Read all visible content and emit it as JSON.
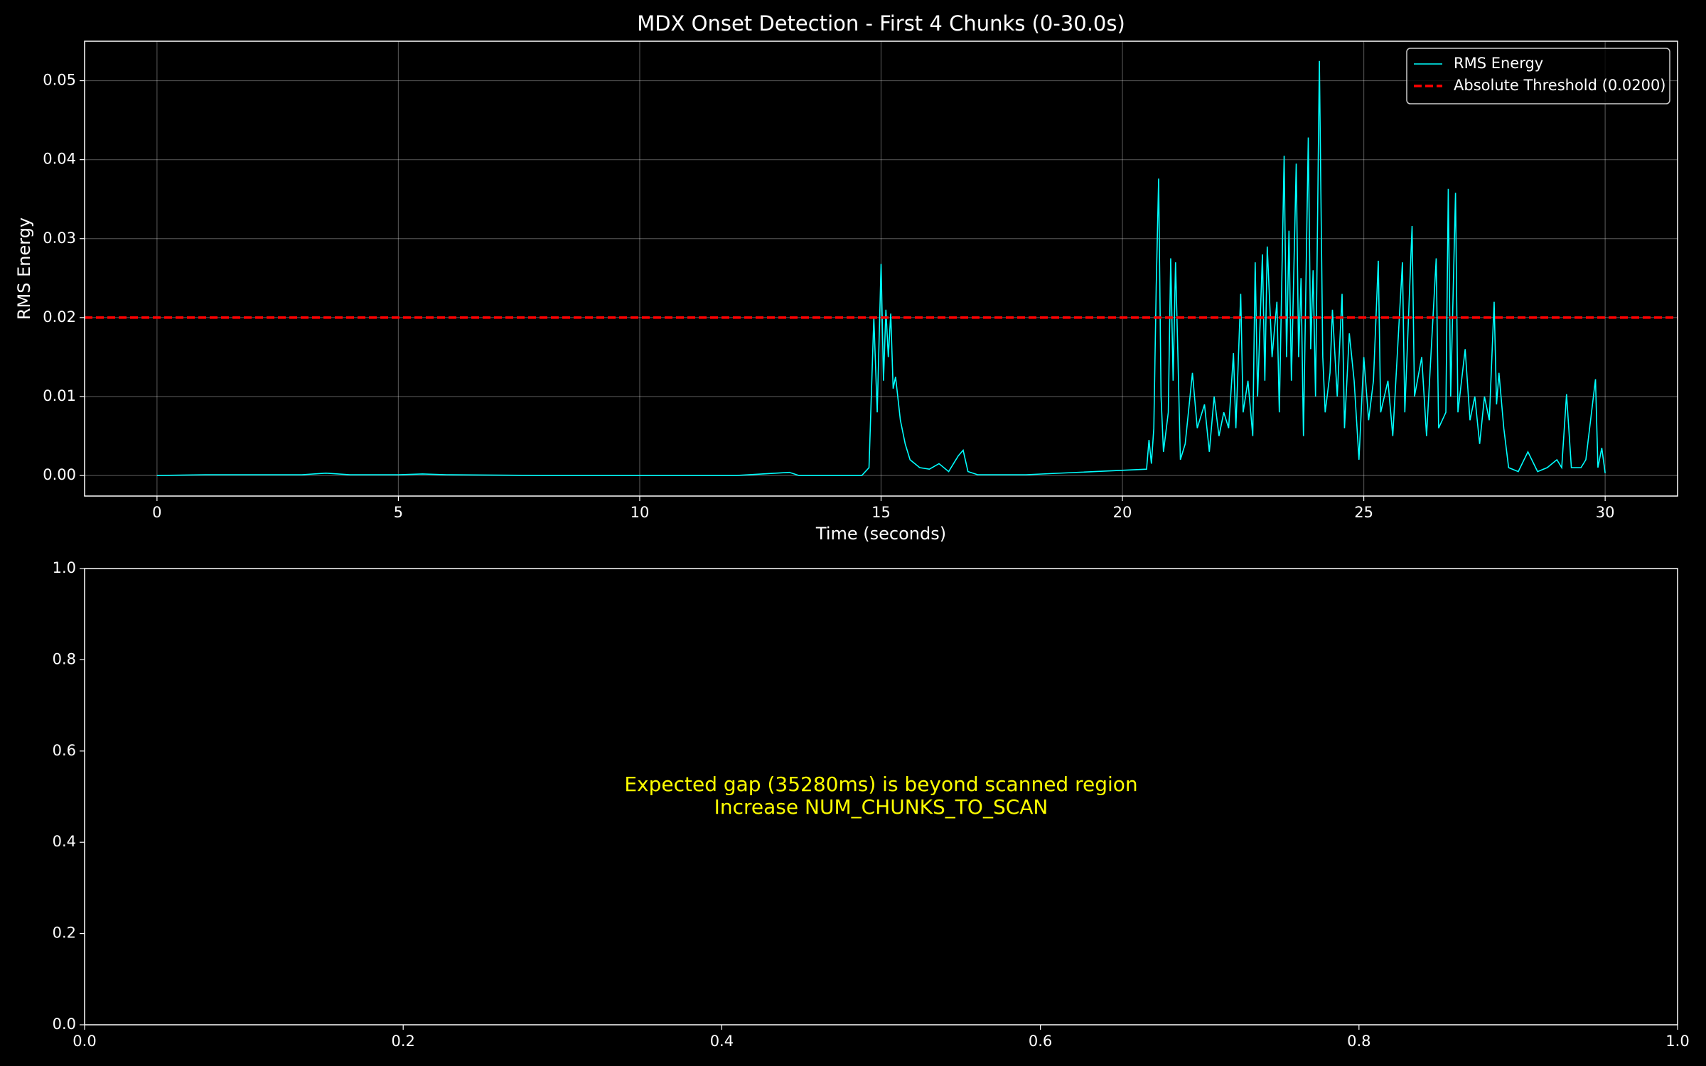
{
  "chart_data": [
    {
      "type": "line",
      "title": "MDX Onset Detection - First 4 Chunks (0-30.0s)",
      "xlabel": "Time (seconds)",
      "ylabel": "RMS Energy",
      "xlim": [
        -1.5,
        31.5
      ],
      "ylim": [
        -0.0026,
        0.055
      ],
      "xticks": [
        0,
        5,
        10,
        15,
        20,
        25,
        30
      ],
      "yticks": [
        {
          "value": 0,
          "label": "0.00"
        },
        {
          "value": 0.01,
          "label": "0.01"
        },
        {
          "value": 0.02,
          "label": "0.02"
        },
        {
          "value": 0.03,
          "label": "0.03"
        },
        {
          "value": 0.04,
          "label": "0.04"
        },
        {
          "value": 0.05,
          "label": "0.05"
        }
      ],
      "grid": true,
      "legend": "upper right",
      "x": [
        0,
        1,
        2,
        3,
        3.5,
        4,
        5,
        5.5,
        6,
        8,
        10,
        12,
        13.1,
        13.3,
        14.6,
        14.75,
        14.85,
        14.92,
        15.0,
        15.05,
        15.1,
        15.15,
        15.2,
        15.25,
        15.3,
        15.4,
        15.5,
        15.6,
        15.8,
        16.0,
        16.2,
        16.4,
        16.6,
        16.7,
        16.8,
        17.0,
        18.0,
        20.5,
        20.55,
        20.6,
        20.65,
        20.7,
        20.75,
        20.8,
        20.85,
        20.95,
        21.0,
        21.05,
        21.1,
        21.15,
        21.2,
        21.3,
        21.45,
        21.55,
        21.7,
        21.8,
        21.9,
        22.0,
        22.1,
        22.2,
        22.3,
        22.35,
        22.45,
        22.5,
        22.6,
        22.7,
        22.75,
        22.8,
        22.9,
        22.95,
        23.0,
        23.1,
        23.2,
        23.25,
        23.35,
        23.4,
        23.45,
        23.5,
        23.6,
        23.65,
        23.7,
        23.75,
        23.85,
        23.9,
        23.95,
        24.0,
        24.08,
        24.15,
        24.2,
        24.3,
        24.35,
        24.45,
        24.55,
        24.6,
        24.7,
        24.8,
        24.9,
        25.0,
        25.1,
        25.2,
        25.3,
        25.35,
        25.5,
        25.6,
        25.8,
        25.85,
        26.0,
        26.05,
        26.2,
        26.3,
        26.5,
        26.55,
        26.7,
        26.75,
        26.8,
        26.9,
        26.95,
        27.1,
        27.2,
        27.3,
        27.4,
        27.5,
        27.6,
        27.7,
        27.75,
        27.8,
        27.9,
        28.0,
        28.2,
        28.4,
        28.6,
        28.8,
        29.0,
        29.1,
        29.2,
        29.3,
        29.5,
        29.6,
        29.8,
        29.85,
        29.93,
        30.0
      ],
      "series": [
        {
          "name": "RMS Energy",
          "color": "#00ffff",
          "values": [
            0,
            0.0001,
            0.0001,
            0.0001,
            0.0003,
            0.0001,
            0.0001,
            0.0002,
            0.0001,
            0,
            0,
            0,
            0.0004,
            0,
            0,
            0.001,
            0.02,
            0.008,
            0.0268,
            0.012,
            0.021,
            0.015,
            0.0205,
            0.011,
            0.0125,
            0.007,
            0.004,
            0.002,
            0.001,
            0.0008,
            0.0015,
            0.0005,
            0.0025,
            0.0032,
            0.0005,
            0.0001,
            0.0001,
            0.0008,
            0.0045,
            0.0015,
            0.006,
            0.024,
            0.0376,
            0.01,
            0.003,
            0.008,
            0.0275,
            0.012,
            0.027,
            0.015,
            0.002,
            0.004,
            0.013,
            0.006,
            0.009,
            0.003,
            0.01,
            0.005,
            0.008,
            0.006,
            0.0155,
            0.006,
            0.023,
            0.008,
            0.012,
            0.005,
            0.027,
            0.01,
            0.028,
            0.012,
            0.029,
            0.015,
            0.022,
            0.008,
            0.0405,
            0.015,
            0.031,
            0.012,
            0.0395,
            0.015,
            0.025,
            0.005,
            0.0428,
            0.016,
            0.026,
            0.01,
            0.0525,
            0.015,
            0.008,
            0.013,
            0.021,
            0.01,
            0.023,
            0.006,
            0.018,
            0.012,
            0.002,
            0.015,
            0.007,
            0.012,
            0.0272,
            0.008,
            0.012,
            0.005,
            0.027,
            0.008,
            0.0316,
            0.01,
            0.015,
            0.005,
            0.0275,
            0.006,
            0.008,
            0.0363,
            0.01,
            0.0358,
            0.008,
            0.016,
            0.007,
            0.01,
            0.004,
            0.01,
            0.007,
            0.022,
            0.009,
            0.013,
            0.006,
            0.001,
            0.0005,
            0.003,
            0.0005,
            0.001,
            0.002,
            0.001,
            0.0103,
            0.001,
            0.001,
            0.002,
            0.0122,
            0.001,
            0.0035,
            0.0003
          ]
        }
      ],
      "hline": {
        "name": "Absolute Threshold (0.0200)",
        "value": 0.02,
        "color": "#ff0000"
      }
    },
    {
      "type": "blank",
      "xlim": [
        0,
        1
      ],
      "ylim": [
        0,
        1
      ],
      "xticks": [
        {
          "value": 0,
          "label": "0.0"
        },
        {
          "value": 0.2,
          "label": "0.2"
        },
        {
          "value": 0.4,
          "label": "0.4"
        },
        {
          "value": 0.6,
          "label": "0.6"
        },
        {
          "value": 0.8,
          "label": "0.8"
        },
        {
          "value": 1,
          "label": "1.0"
        }
      ],
      "yticks": [
        {
          "value": 0,
          "label": "0.0"
        },
        {
          "value": 0.2,
          "label": "0.2"
        },
        {
          "value": 0.4,
          "label": "0.4"
        },
        {
          "value": 0.6,
          "label": "0.6"
        },
        {
          "value": 0.8,
          "label": "0.8"
        },
        {
          "value": 1,
          "label": "1.0"
        }
      ],
      "annotation": {
        "lines": [
          "Expected gap (35280ms) is beyond scanned region",
          "Increase NUM_CHUNKS_TO_SCAN"
        ],
        "color": "#ffff00"
      }
    }
  ]
}
